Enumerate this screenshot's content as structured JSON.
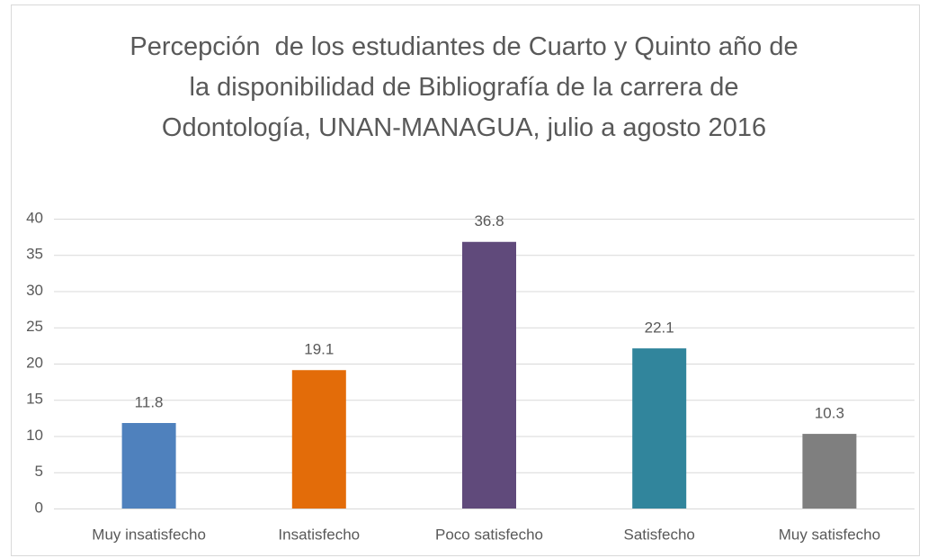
{
  "chart_data": {
    "type": "bar",
    "title": "Percepción  de los estudiantes de Cuarto y Quinto año de la disponibilidad de Bibliografía de la carrera de Odontología, UNAN-MANAGUA, julio a agosto 2016",
    "categories": [
      "Muy insatisfecho",
      "Insatisfecho",
      "Poco satisfecho",
      "Satisfecho",
      "Muy satisfecho"
    ],
    "values": [
      11.8,
      19.1,
      36.8,
      22.1,
      10.3
    ],
    "colors": [
      "#4f81bd",
      "#e36c09",
      "#604a7b",
      "#31859c",
      "#7f7f7f"
    ],
    "ylim": [
      0,
      40
    ],
    "yticks": [
      0,
      5,
      10,
      15,
      20,
      25,
      30,
      35,
      40
    ],
    "grid": true
  }
}
